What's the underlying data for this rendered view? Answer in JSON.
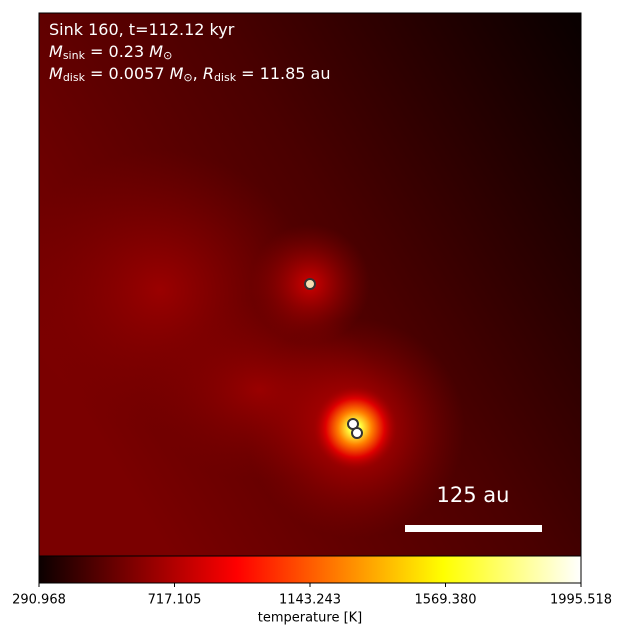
{
  "chart_data": {
    "type": "image",
    "annotation_lines": [
      [
        {
          "text": "Sink 160, t=112.12 kyr"
        }
      ],
      [
        {
          "text": "M",
          "italic": true
        },
        {
          "text": "sink",
          "sub": true
        },
        {
          "text": " = 0.23 "
        },
        {
          "text": "M",
          "italic": true
        },
        {
          "text": "⊙",
          "sub": true
        }
      ],
      [
        {
          "text": "M",
          "italic": true
        },
        {
          "text": "disk",
          "sub": true
        },
        {
          "text": " = 0.0057 "
        },
        {
          "text": "M",
          "italic": true
        },
        {
          "text": "⊙",
          "sub": true
        },
        {
          "text": ", "
        },
        {
          "text": "R",
          "italic": true
        },
        {
          "text": "disk",
          "sub": true
        },
        {
          "text": " = 11.85 au"
        }
      ]
    ],
    "scale_bar_label": "125 au",
    "colormap": "hot",
    "colorbar_label": "temperature [K]",
    "clim": [
      290.968,
      1995.518
    ],
    "cticks": [
      290.968,
      717.105,
      1143.243,
      {
        "value": 1569.38,
        "label": "1569.380"
      },
      1995.518
    ]
  }
}
